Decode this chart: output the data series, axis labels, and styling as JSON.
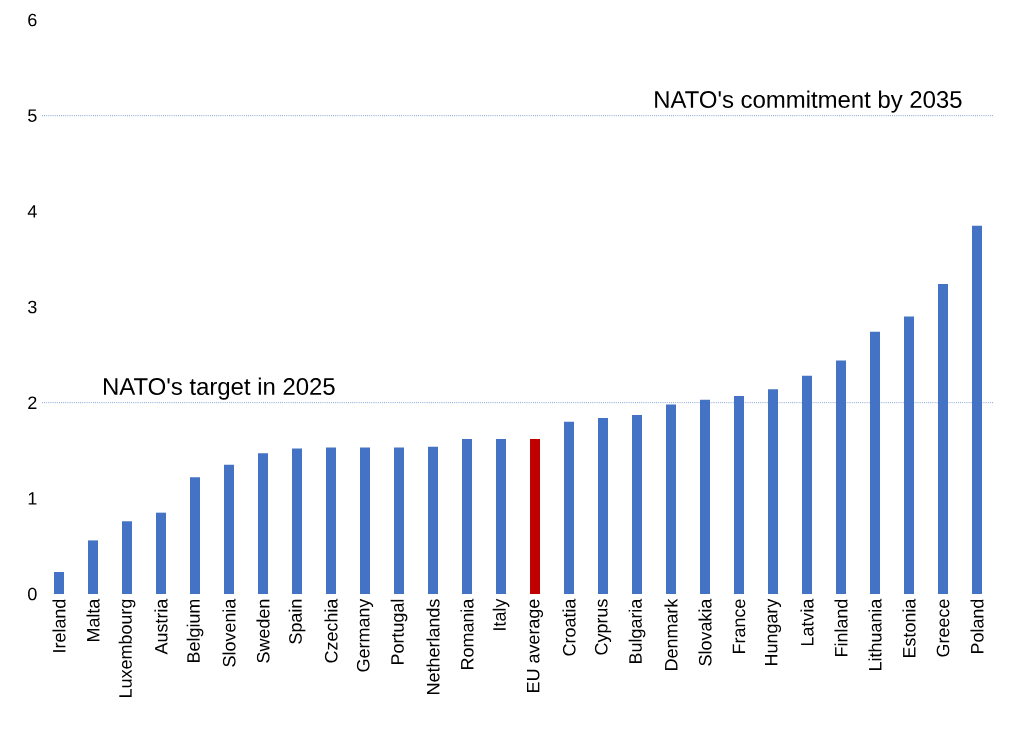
{
  "chart_data": {
    "type": "bar",
    "categories": [
      "Ireland",
      "Malta",
      "Luxembourg",
      "Austria",
      "Belgium",
      "Slovenia",
      "Sweden",
      "Spain",
      "Czechia",
      "Germany",
      "Portugal",
      "Netherlands",
      "Romania",
      "Italy",
      "EU average",
      "Croatia",
      "Cyprus",
      "Bulgaria",
      "Denmark",
      "Slovakia",
      "France",
      "Hungary",
      "Latvia",
      "Finland",
      "Lithuania",
      "Estonia",
      "Greece",
      "Poland"
    ],
    "values": [
      0.23,
      0.56,
      0.76,
      0.85,
      1.22,
      1.35,
      1.47,
      1.52,
      1.53,
      1.53,
      1.53,
      1.54,
      1.62,
      1.62,
      1.62,
      1.8,
      1.84,
      1.87,
      1.98,
      2.03,
      2.07,
      2.14,
      2.28,
      2.44,
      2.74,
      2.9,
      3.24,
      3.85
    ],
    "colors": [
      "#4472c4",
      "#4472c4",
      "#4472c4",
      "#4472c4",
      "#4472c4",
      "#4472c4",
      "#4472c4",
      "#4472c4",
      "#4472c4",
      "#4472c4",
      "#4472c4",
      "#4472c4",
      "#4472c4",
      "#4472c4",
      "#c00000",
      "#4472c4",
      "#4472c4",
      "#4472c4",
      "#4472c4",
      "#4472c4",
      "#4472c4",
      "#4472c4",
      "#4472c4",
      "#4472c4",
      "#4472c4",
      "#4472c4",
      "#4472c4",
      "#4472c4"
    ],
    "ylim": [
      0,
      6
    ],
    "yticks": [
      0,
      1,
      2,
      3,
      4,
      5,
      6
    ],
    "ref_lines": [
      {
        "axis": "y",
        "value": 2,
        "label": "NATO's target in 2025",
        "color": "#4472c4",
        "line_style": "dotted"
      },
      {
        "axis": "y",
        "value": 5,
        "label": "NATO's commitment by 2035",
        "color": "#4472c4",
        "line_style": "dotted"
      }
    ],
    "grid": false
  }
}
